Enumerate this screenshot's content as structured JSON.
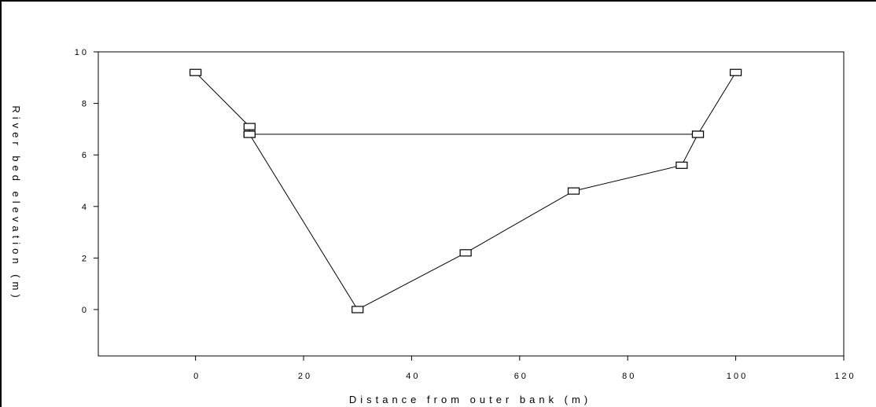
{
  "chart_data": {
    "type": "line",
    "title": "",
    "xlabel": "Distance from outer bank (m)",
    "ylabel": "River bed elevation (m)",
    "xlim": [
      -18,
      120
    ],
    "ylim": [
      -1.8,
      10
    ],
    "xticks": [
      0,
      20,
      40,
      60,
      80,
      100,
      120
    ],
    "yticks": [
      0,
      2,
      4,
      6,
      8,
      10
    ],
    "grid": false,
    "legend": "none",
    "colors": {
      "line": "#000000",
      "marker_fill": "#ffffff",
      "marker_stroke": "#000000"
    },
    "series": [
      {
        "marker": "square",
        "x": [
          0,
          10,
          10,
          93,
          100
        ],
        "y": [
          9.2,
          7.1,
          6.8,
          6.8,
          9.2
        ]
      },
      {
        "marker": "square",
        "x": [
          10,
          30,
          50,
          70,
          90,
          93
        ],
        "y": [
          6.8,
          0,
          2.2,
          4.6,
          5.6,
          6.8
        ]
      }
    ]
  }
}
